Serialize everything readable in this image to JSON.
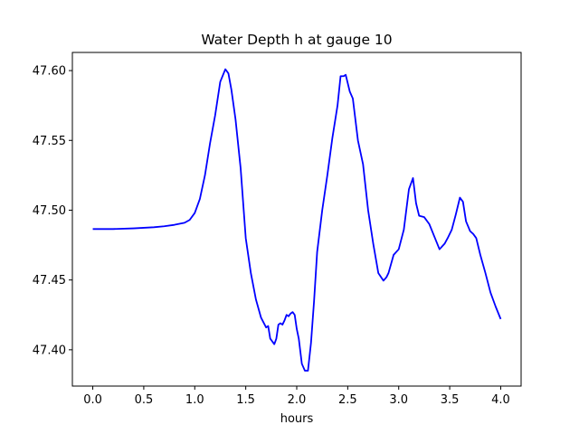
{
  "chart_data": {
    "type": "line",
    "title": "Water Depth h at gauge 10",
    "xlabel": "hours",
    "ylabel": "",
    "xlim": [
      -0.2,
      4.2
    ],
    "ylim": [
      47.374,
      47.613
    ],
    "xticks": [
      0.0,
      0.5,
      1.0,
      1.5,
      2.0,
      2.5,
      3.0,
      3.5,
      4.0
    ],
    "xtick_labels": [
      "0.0",
      "0.5",
      "1.0",
      "1.5",
      "2.0",
      "2.5",
      "3.0",
      "3.5",
      "4.0"
    ],
    "yticks": [
      47.4,
      47.45,
      47.5,
      47.55,
      47.6
    ],
    "ytick_labels": [
      "47.40",
      "47.45",
      "47.50",
      "47.55",
      "47.60"
    ],
    "grid": false,
    "series": [
      {
        "color": "#0000ff",
        "x": [
          0.0,
          0.2,
          0.4,
          0.6,
          0.7,
          0.8,
          0.9,
          0.95,
          1.0,
          1.05,
          1.1,
          1.15,
          1.2,
          1.25,
          1.3,
          1.33,
          1.36,
          1.4,
          1.45,
          1.5,
          1.55,
          1.6,
          1.65,
          1.7,
          1.72,
          1.74,
          1.76,
          1.78,
          1.8,
          1.82,
          1.84,
          1.86,
          1.88,
          1.9,
          1.92,
          1.94,
          1.96,
          1.98,
          2.0,
          2.02,
          2.05,
          2.08,
          2.11,
          2.14,
          2.17,
          2.2,
          2.25,
          2.3,
          2.35,
          2.4,
          2.43,
          2.46,
          2.48,
          2.5,
          2.52,
          2.55,
          2.6,
          2.65,
          2.7,
          2.75,
          2.8,
          2.85,
          2.88,
          2.9,
          2.95,
          3.0,
          3.05,
          3.1,
          3.14,
          3.17,
          3.2,
          3.25,
          3.3,
          3.35,
          3.4,
          3.45,
          3.48,
          3.52,
          3.56,
          3.6,
          3.63,
          3.66,
          3.7,
          3.73,
          3.76,
          3.8,
          3.85,
          3.9,
          3.95,
          4.0
        ],
        "values": [
          47.4865,
          47.4865,
          47.487,
          47.4878,
          47.4885,
          47.4895,
          47.491,
          47.493,
          47.498,
          47.508,
          47.525,
          47.548,
          47.568,
          47.592,
          47.601,
          47.598,
          47.586,
          47.565,
          47.53,
          47.48,
          47.455,
          47.436,
          47.423,
          47.416,
          47.417,
          47.408,
          47.406,
          47.404,
          47.408,
          47.418,
          47.419,
          47.418,
          47.421,
          47.425,
          47.424,
          47.426,
          47.427,
          47.425,
          47.415,
          47.408,
          47.39,
          47.385,
          47.385,
          47.405,
          47.435,
          47.47,
          47.5,
          47.525,
          47.552,
          47.575,
          47.596,
          47.596,
          47.597,
          47.591,
          47.585,
          47.58,
          47.55,
          47.533,
          47.5,
          47.476,
          47.455,
          47.4495,
          47.452,
          47.455,
          47.468,
          47.472,
          47.486,
          47.515,
          47.523,
          47.505,
          47.496,
          47.495,
          47.49,
          47.481,
          47.472,
          47.476,
          47.48,
          47.486,
          47.497,
          47.509,
          47.506,
          47.492,
          47.485,
          47.483,
          47.48,
          47.468,
          47.455,
          47.441,
          47.431,
          47.422
        ]
      }
    ]
  }
}
